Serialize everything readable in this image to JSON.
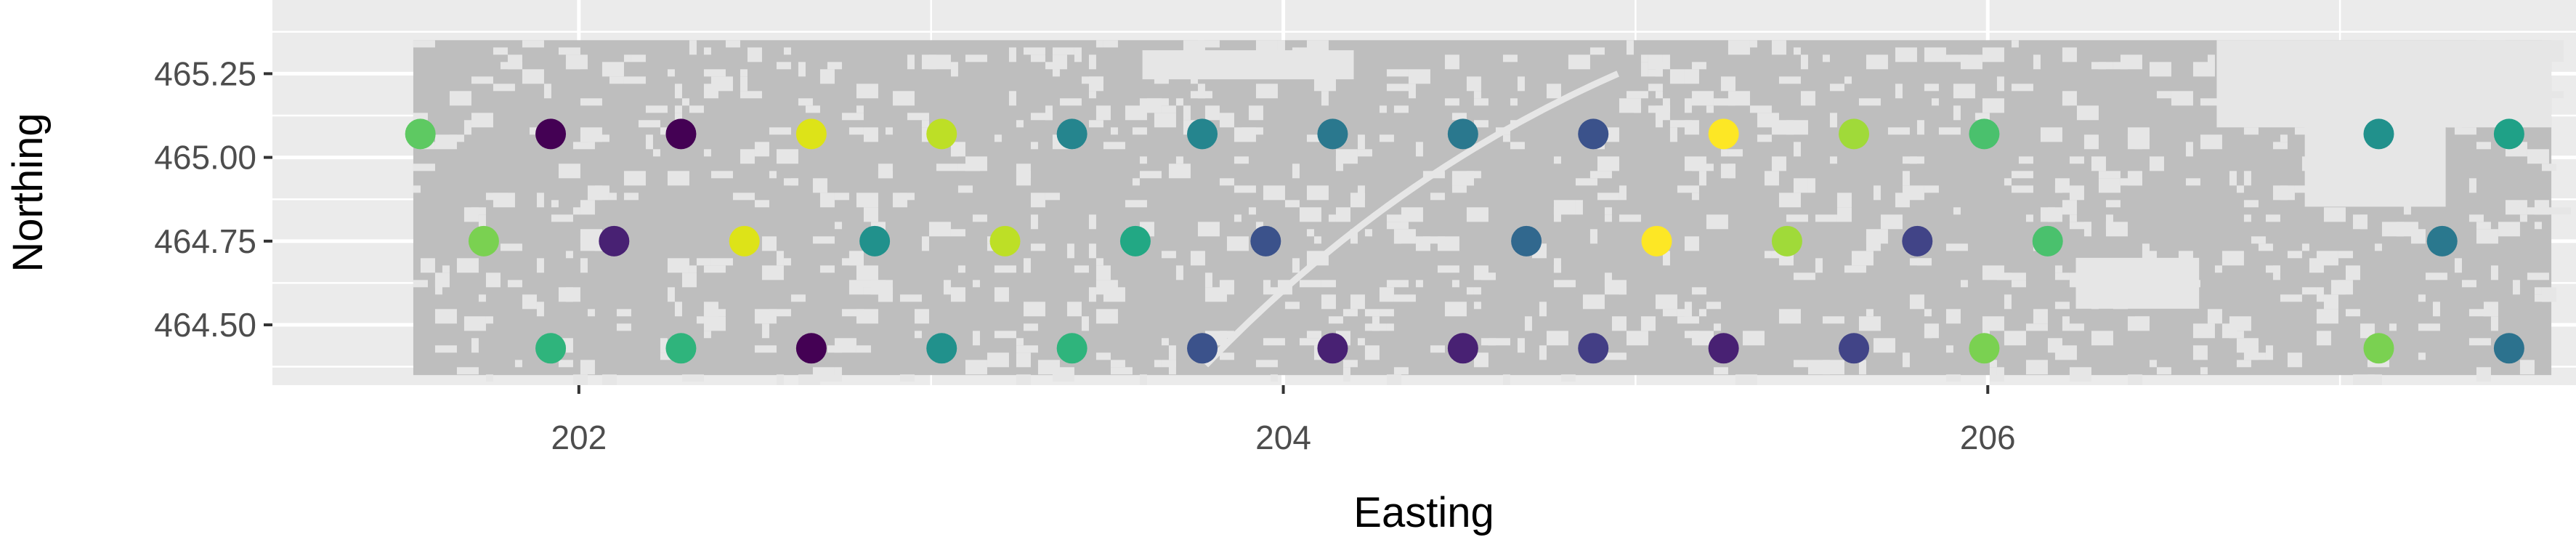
{
  "chart_data": {
    "type": "scatter",
    "title": "",
    "xlabel": "Easting",
    "ylabel": "Northing",
    "xlim": [
      201.13,
      207.67
    ],
    "ylim": [
      464.32,
      465.47
    ],
    "x_ticks": [
      202,
      204,
      206
    ],
    "x_tick_labels": [
      "202",
      "204",
      "206"
    ],
    "y_ticks": [
      464.5,
      464.75,
      465.0,
      465.25
    ],
    "y_tick_labels": [
      "464.50",
      "464.75",
      "465.00",
      "465.25"
    ],
    "grid": true,
    "legend": "none",
    "background_raster": {
      "description_color": "#bebebe",
      "x_range": [
        201.53,
        207.6
      ],
      "y_range": [
        464.35,
        465.35
      ]
    },
    "points": [
      {
        "x": 201.55,
        "y": 465.07,
        "color": "#5ec962"
      },
      {
        "x": 201.92,
        "y": 465.07,
        "color": "#440154"
      },
      {
        "x": 202.29,
        "y": 465.07,
        "color": "#440154"
      },
      {
        "x": 202.66,
        "y": 465.07,
        "color": "#dde318"
      },
      {
        "x": 203.03,
        "y": 465.07,
        "color": "#bddf26"
      },
      {
        "x": 203.4,
        "y": 465.07,
        "color": "#25858e"
      },
      {
        "x": 203.77,
        "y": 465.07,
        "color": "#25858e"
      },
      {
        "x": 204.14,
        "y": 465.07,
        "color": "#2a788e"
      },
      {
        "x": 204.51,
        "y": 465.07,
        "color": "#2a788e"
      },
      {
        "x": 204.88,
        "y": 465.07,
        "color": "#3b528b"
      },
      {
        "x": 205.25,
        "y": 465.07,
        "color": "#fde725"
      },
      {
        "x": 205.62,
        "y": 465.07,
        "color": "#a0da39"
      },
      {
        "x": 205.99,
        "y": 465.07,
        "color": "#4ac16d"
      },
      {
        "x": 207.11,
        "y": 465.07,
        "color": "#21918c"
      },
      {
        "x": 207.48,
        "y": 465.07,
        "color": "#1fa187"
      },
      {
        "x": 201.73,
        "y": 464.75,
        "color": "#7ad151"
      },
      {
        "x": 202.1,
        "y": 464.75,
        "color": "#482173"
      },
      {
        "x": 202.47,
        "y": 464.75,
        "color": "#dde318"
      },
      {
        "x": 202.84,
        "y": 464.75,
        "color": "#21918c"
      },
      {
        "x": 203.21,
        "y": 464.75,
        "color": "#bddf26"
      },
      {
        "x": 203.58,
        "y": 464.75,
        "color": "#22a884"
      },
      {
        "x": 203.95,
        "y": 464.75,
        "color": "#3b528b"
      },
      {
        "x": 204.69,
        "y": 464.75,
        "color": "#31688e"
      },
      {
        "x": 205.06,
        "y": 464.75,
        "color": "#fde725"
      },
      {
        "x": 205.43,
        "y": 464.75,
        "color": "#a0da39"
      },
      {
        "x": 205.8,
        "y": 464.75,
        "color": "#414487"
      },
      {
        "x": 206.17,
        "y": 464.75,
        "color": "#4ac16d"
      },
      {
        "x": 207.29,
        "y": 464.75,
        "color": "#2a788e"
      },
      {
        "x": 201.92,
        "y": 464.43,
        "color": "#2fb47c"
      },
      {
        "x": 202.29,
        "y": 464.43,
        "color": "#2fb47c"
      },
      {
        "x": 202.66,
        "y": 464.43,
        "color": "#440154"
      },
      {
        "x": 203.03,
        "y": 464.43,
        "color": "#21918c"
      },
      {
        "x": 203.4,
        "y": 464.43,
        "color": "#2fb47c"
      },
      {
        "x": 203.77,
        "y": 464.43,
        "color": "#3b528b"
      },
      {
        "x": 204.14,
        "y": 464.43,
        "color": "#482173"
      },
      {
        "x": 204.51,
        "y": 464.43,
        "color": "#482173"
      },
      {
        "x": 204.88,
        "y": 464.43,
        "color": "#433e85"
      },
      {
        "x": 205.25,
        "y": 464.43,
        "color": "#482173"
      },
      {
        "x": 205.62,
        "y": 464.43,
        "color": "#414487"
      },
      {
        "x": 205.99,
        "y": 464.43,
        "color": "#7ad151"
      },
      {
        "x": 207.11,
        "y": 464.43,
        "color": "#7ad151"
      },
      {
        "x": 207.48,
        "y": 464.43,
        "color": "#2c728e"
      }
    ]
  },
  "colors": {
    "panel_background": "#ebebeb",
    "grid_major": "#ffffff",
    "raster_fill": "#bebebe"
  }
}
